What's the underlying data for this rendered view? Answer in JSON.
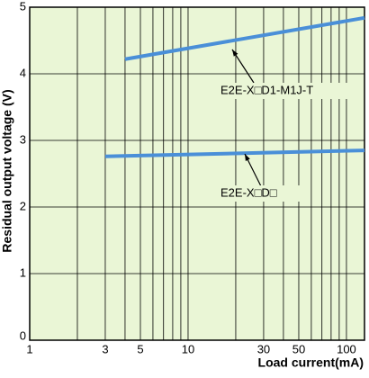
{
  "chart_data": {
    "type": "line",
    "xlabel": "Load current(mA)",
    "ylabel": "Residual output voltage (V)",
    "xscale": "log",
    "xlim": [
      1,
      130
    ],
    "ylim": [
      0,
      5
    ],
    "xticks": [
      1,
      3,
      5,
      10,
      30,
      50,
      100
    ],
    "xminor": [
      2,
      4,
      6,
      7,
      8,
      9,
      20,
      40,
      60,
      70,
      80,
      90
    ],
    "yticks": [
      0,
      1,
      2,
      3,
      4,
      5
    ],
    "grid": true,
    "background": "#eaf6d6",
    "series": [
      {
        "name": "E2E-X□D1-M1J-T",
        "color": "#4a8fd8",
        "x": [
          4,
          130
        ],
        "values": [
          4.22,
          4.84
        ]
      },
      {
        "name": "E2E-X□D□",
        "color": "#4a8fd8",
        "x": [
          3,
          130
        ],
        "values": [
          2.76,
          2.85
        ]
      }
    ]
  }
}
